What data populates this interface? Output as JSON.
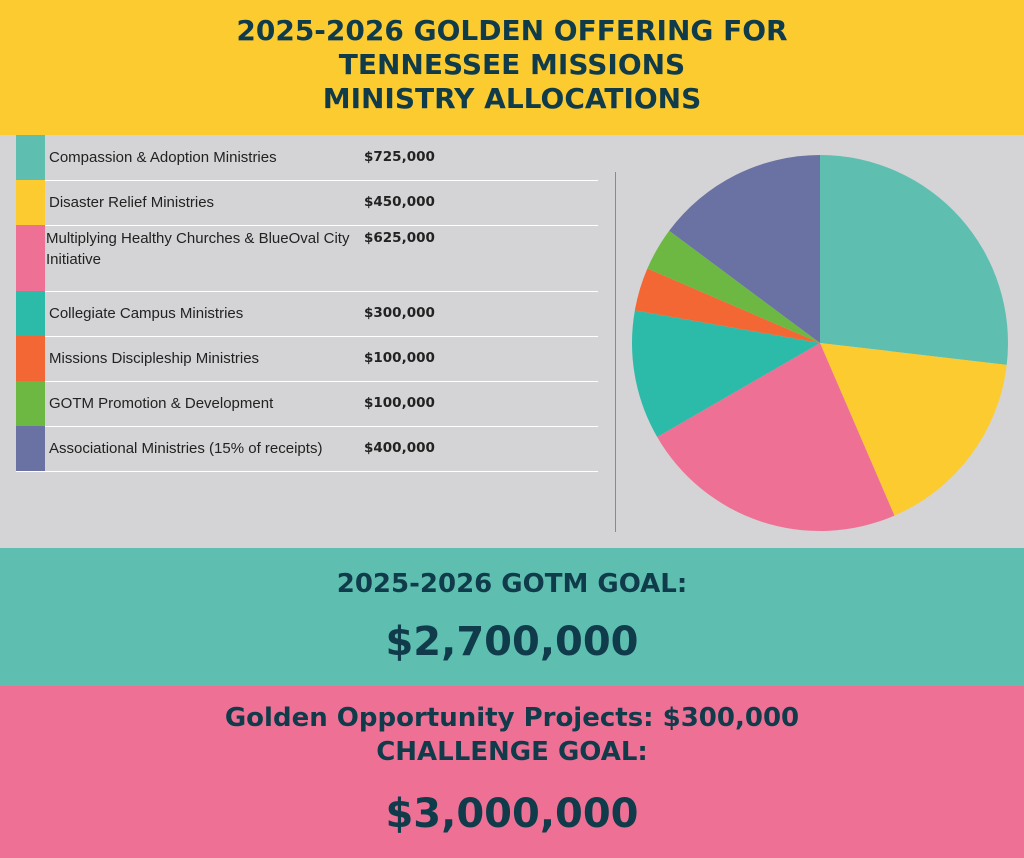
{
  "header": {
    "line1": "2025-2026 GOLDEN OFFERING FOR",
    "line2": "TENNESSEE MISSIONS",
    "line3": "MINISTRY ALLOCATIONS"
  },
  "chart_data": {
    "type": "pie",
    "title": "",
    "categories": [
      "Compassion & Adoption Ministries",
      "Disaster Relief Ministries",
      "Multiplying Healthy Churches & BlueOval City Initiative",
      "Collegiate Campus Ministries",
      "Missions Discipleship Ministries",
      "GOTM Promotion & Development",
      "Associational Ministries (15% of receipts)"
    ],
    "values": [
      725000,
      450000,
      625000,
      300000,
      100000,
      100000,
      400000
    ],
    "labels": [
      "$725,000",
      "$450,000",
      "$625,000",
      "$300,000",
      "$100,000",
      "$100,000",
      "$400,000"
    ],
    "colors": [
      "#5ebfb0",
      "#fccb30",
      "#ef7095",
      "#2dbba9",
      "#f26734",
      "#6cb843",
      "#6a72a3"
    ],
    "legend_position": "left",
    "start_angle_deg": 0,
    "direction": "clockwise"
  },
  "goal": {
    "title": "2025-2026 GOTM GOAL:",
    "value": "$2,700,000"
  },
  "challenge": {
    "line1": "Golden Opportunity Projects: $300,000",
    "line2": "CHALLENGE GOAL:",
    "value": "$3,000,000"
  }
}
